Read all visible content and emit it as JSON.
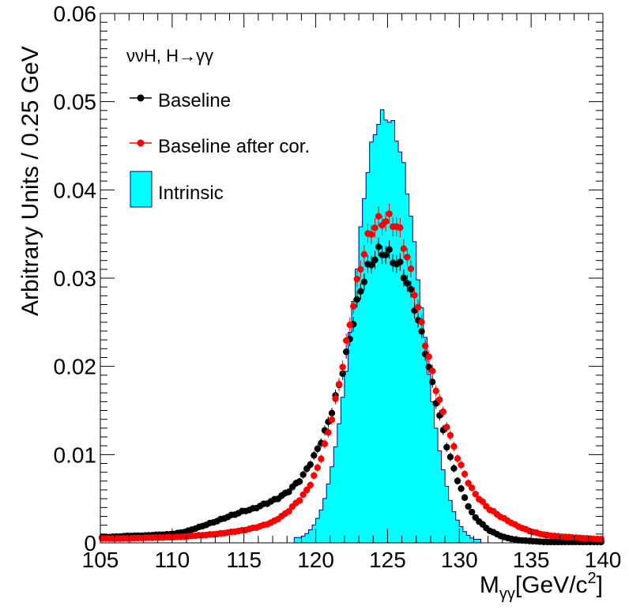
{
  "chart_data": {
    "type": "histogram-with-points",
    "annotation": "ννH, H→γγ",
    "xlabel_main": "M",
    "xlabel_sub": "γγ",
    "xlabel_unit": "[GeV/c",
    "xlabel_sup": "2",
    "xlabel_close": "]",
    "ylabel": "Arbitrary Units / 0.25 GeV",
    "xlim": [
      105,
      140
    ],
    "ylim": [
      0,
      0.06
    ],
    "x_ticks": [
      105,
      110,
      115,
      120,
      125,
      130,
      135,
      140
    ],
    "x_tick_labels": [
      "105",
      "110",
      "115",
      "120",
      "125",
      "130",
      "135",
      "140"
    ],
    "y_ticks": [
      0,
      0.01,
      0.02,
      0.03,
      0.04,
      0.05,
      0.06
    ],
    "y_tick_labels": [
      "0",
      "0.01",
      "0.02",
      "0.03",
      "0.04",
      "0.05",
      "0.06"
    ],
    "bin_width": 0.25,
    "legend": [
      {
        "label": "Baseline",
        "color": "#000000",
        "style": "marker"
      },
      {
        "label": "Baseline after cor.",
        "color": "#ff0000",
        "style": "marker"
      },
      {
        "label": "Intrinsic",
        "color": "#00ffff",
        "style": "box"
      }
    ],
    "intrinsic_sigma": 1.6,
    "baseline_core_sigma": 2.3,
    "baseline_left_tail_peak": 115.5,
    "corrected_core_sigma": 2.1,
    "series": [
      {
        "name": "Intrinsic",
        "color": "#00ffff",
        "edge_color": "#00008b",
        "x": [
          119.0,
          119.5,
          120.0,
          120.5,
          121.0,
          121.5,
          122.0,
          122.5,
          123.0,
          123.5,
          124.0,
          124.5,
          125.0,
          125.5,
          126.0,
          126.5,
          127.0,
          127.5,
          128.0,
          128.5,
          129.0,
          129.5,
          130.0,
          130.5,
          131.0
        ],
        "y": [
          0.0006,
          0.0012,
          0.0023,
          0.0042,
          0.0075,
          0.012,
          0.018,
          0.0255,
          0.033,
          0.0405,
          0.0455,
          0.0485,
          0.049,
          0.0475,
          0.044,
          0.0385,
          0.0315,
          0.0245,
          0.0175,
          0.0115,
          0.0072,
          0.004,
          0.0021,
          0.001,
          0.0004
        ]
      },
      {
        "name": "Baseline",
        "color": "#000000",
        "x": [
          105,
          106,
          107,
          108,
          109,
          110,
          111,
          112,
          113,
          114,
          115,
          115.5,
          116,
          117,
          118,
          119,
          119.5,
          120,
          120.5,
          121,
          121.5,
          122,
          122.5,
          123,
          123.5,
          124,
          124.5,
          125,
          125.5,
          126,
          126.5,
          127,
          127.5,
          128,
          128.5,
          129,
          129.5,
          130,
          130.5,
          131,
          132,
          133,
          134,
          135,
          136
        ],
        "y": [
          0.0006,
          0.0007,
          0.0008,
          0.0008,
          0.0009,
          0.001,
          0.0013,
          0.0018,
          0.0024,
          0.0031,
          0.0036,
          0.0037,
          0.004,
          0.0048,
          0.0058,
          0.0072,
          0.0085,
          0.01,
          0.012,
          0.0145,
          0.0175,
          0.0205,
          0.024,
          0.0275,
          0.03,
          0.032,
          0.0335,
          0.0335,
          0.0325,
          0.031,
          0.0285,
          0.0255,
          0.0225,
          0.019,
          0.0155,
          0.012,
          0.009,
          0.0065,
          0.0045,
          0.003,
          0.0015,
          0.0007,
          0.0003,
          0.0002,
          0.0001
        ]
      },
      {
        "name": "Baseline after cor.",
        "color": "#ff0000",
        "x": [
          105,
          107,
          109,
          111,
          113,
          115,
          116,
          117,
          118,
          119,
          119.5,
          120,
          120.5,
          121,
          121.5,
          122,
          122.5,
          123,
          123.5,
          124,
          124.5,
          125,
          125.5,
          126,
          126.5,
          127,
          127.5,
          128,
          128.5,
          129,
          129.5,
          130,
          130.5,
          131,
          132,
          133,
          134,
          135,
          136,
          137,
          138,
          139,
          140
        ],
        "y": [
          0.0005,
          0.0005,
          0.0006,
          0.0007,
          0.001,
          0.0014,
          0.0018,
          0.0024,
          0.0034,
          0.005,
          0.0062,
          0.008,
          0.0105,
          0.0135,
          0.017,
          0.021,
          0.0255,
          0.03,
          0.034,
          0.0365,
          0.0372,
          0.037,
          0.036,
          0.034,
          0.031,
          0.0275,
          0.024,
          0.0205,
          0.017,
          0.014,
          0.0112,
          0.009,
          0.0072,
          0.0058,
          0.004,
          0.0028,
          0.0019,
          0.0013,
          0.0009,
          0.0007,
          0.0006,
          0.0005,
          0.0004
        ]
      }
    ]
  }
}
